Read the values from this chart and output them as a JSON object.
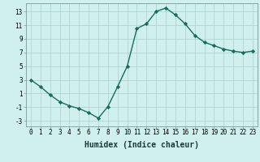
{
  "x": [
    0,
    1,
    2,
    3,
    4,
    5,
    6,
    7,
    8,
    9,
    10,
    11,
    12,
    13,
    14,
    15,
    16,
    17,
    18,
    19,
    20,
    21,
    22,
    23
  ],
  "y": [
    3,
    2,
    0.8,
    -0.2,
    -0.8,
    -1.2,
    -1.8,
    -2.6,
    -0.9,
    2,
    5,
    10.5,
    11.2,
    13,
    13.5,
    12.5,
    11.2,
    9.5,
    8.5,
    8,
    7.5,
    7.2,
    7,
    7.2
  ],
  "line_color": "#1a6b5e",
  "marker": "D",
  "marker_size": 2.2,
  "background_color": "#cff0ec",
  "grid_color": "#aacfcb",
  "xlabel": "Humidex (Indice chaleur)",
  "xlim": [
    -0.5,
    23.5
  ],
  "ylim": [
    -3.8,
    14.2
  ],
  "yticks": [
    -3,
    -1,
    1,
    3,
    5,
    7,
    9,
    11,
    13
  ],
  "xticks": [
    0,
    1,
    2,
    3,
    4,
    5,
    6,
    7,
    8,
    9,
    10,
    11,
    12,
    13,
    14,
    15,
    16,
    17,
    18,
    19,
    20,
    21,
    22,
    23
  ],
  "tick_fontsize": 5.5,
  "label_fontsize": 7.0
}
